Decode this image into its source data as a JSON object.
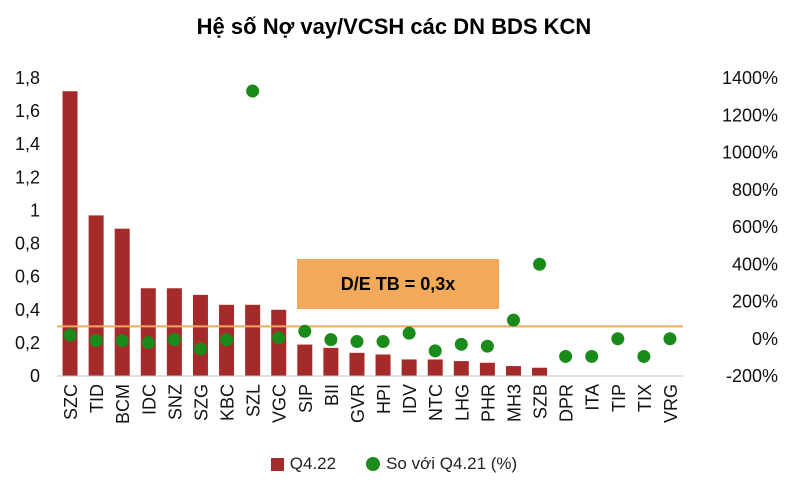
{
  "chart_data": {
    "type": "bar",
    "title": "Hệ số Nợ vay/VCSH các DN BDS KCN",
    "categories": [
      "SZC",
      "TID",
      "BCM",
      "IDC",
      "SNZ",
      "SZG",
      "KBC",
      "SZL",
      "VGC",
      "SIP",
      "BII",
      "GVR",
      "HPI",
      "IDV",
      "NTC",
      "LHG",
      "PHR",
      "MH3",
      "SZB",
      "DPR",
      "ITA",
      "TIP",
      "TIX",
      "VRG"
    ],
    "series": [
      {
        "name": "Q4.22",
        "type": "bar",
        "axis": "left",
        "color": "#A52A2A",
        "values": [
          1.72,
          0.97,
          0.89,
          0.53,
          0.53,
          0.49,
          0.43,
          0.43,
          0.4,
          0.19,
          0.17,
          0.14,
          0.13,
          0.1,
          0.1,
          0.09,
          0.08,
          0.06,
          0.05,
          0,
          0,
          0,
          0,
          0
        ]
      },
      {
        "name": "So với Q4.21 (%)",
        "type": "scatter",
        "axis": "right",
        "color": "#1A8A1A",
        "values": [
          20,
          -10,
          -10,
          -20,
          -5,
          -55,
          -5,
          1330,
          5,
          40,
          -5,
          -15,
          -15,
          30,
          -65,
          -30,
          -40,
          100,
          400,
          -95,
          -95,
          0,
          -95,
          0
        ]
      }
    ],
    "y_left": {
      "ylim": [
        0,
        1.8
      ],
      "ticks": [
        "0",
        "0,2",
        "0,4",
        "0,6",
        "0,8",
        "1",
        "1,2",
        "1,4",
        "1,6",
        "1,8"
      ]
    },
    "y_right": {
      "ylim": [
        -200,
        1400
      ],
      "ticks": [
        "-200%",
        "0%",
        "200%",
        "400%",
        "600%",
        "800%",
        "1000%",
        "1200%",
        "1400%"
      ]
    },
    "reference_line": {
      "value": 0.3,
      "axis": "left",
      "color": "#F2A95A",
      "label": "D/E TB = 0,3x"
    },
    "legend_position": "bottom",
    "grid": false
  },
  "colors": {
    "bar": "#A52A2A",
    "dot": "#1A8A1A",
    "avg": "#F2A95A"
  }
}
